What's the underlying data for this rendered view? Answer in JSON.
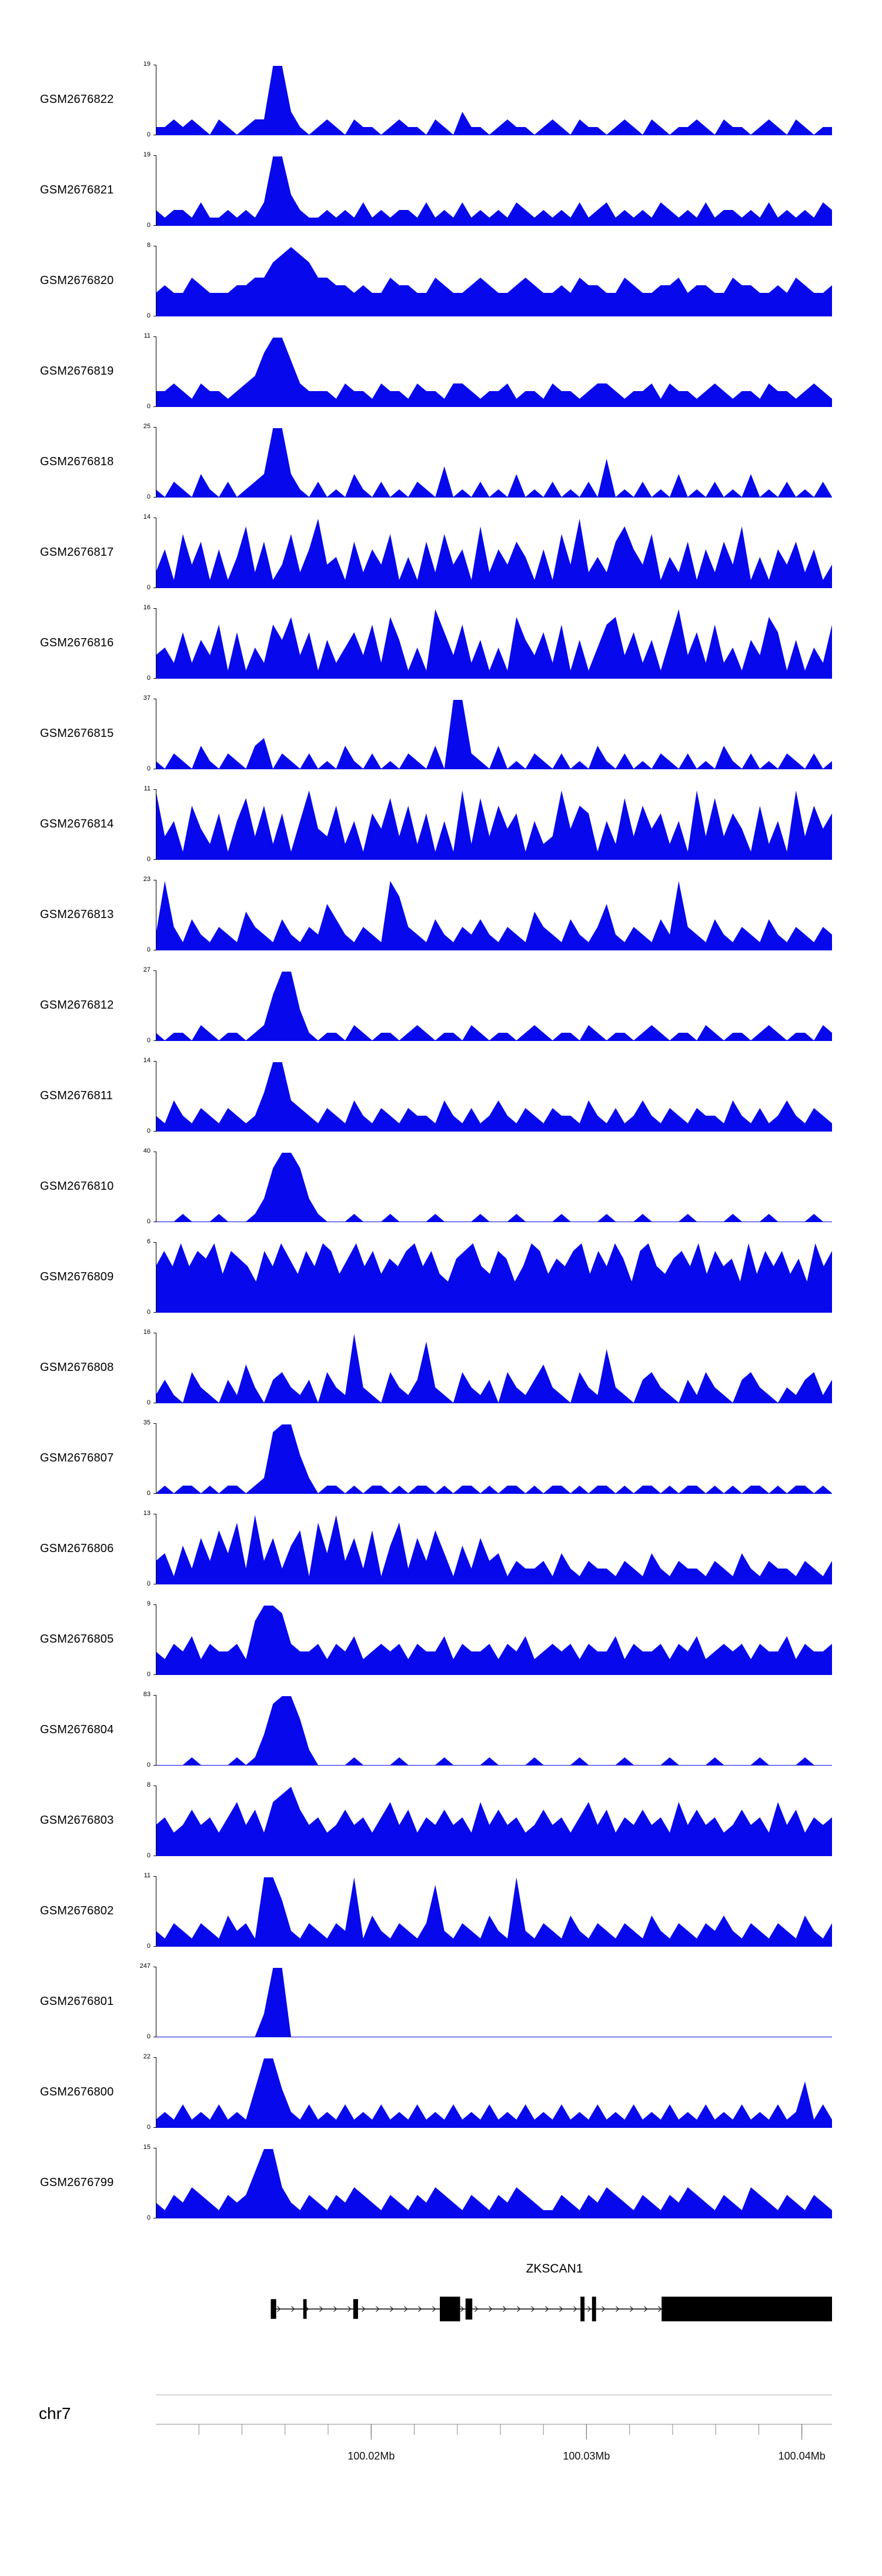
{
  "chart_data": {
    "type": "area",
    "description": "Genome browser coverage signal tracks (blue filled area plots), one per GEO sample, over a shared genomic x-axis with a gene model and chromosome ruler below.",
    "signal_color": "#0708ec",
    "profile_encoding": "each digit 0-9 is the signal height in ninths of y_max, sampled uniformly across the displayed region",
    "x_axis": {
      "chromosome": "chr7",
      "unit": "Mb",
      "range_mb": [
        100.01,
        100.0414
      ]
    },
    "tracks": [
      {
        "name": "GSM2676822",
        "y_min": 0,
        "y_max": 19,
        "profile": "1121210210122993101210211012110210311012110121021101210210112102110121021011"
      },
      {
        "name": "GSM2676821",
        "y_min": 0,
        "y_max": 19,
        "profile": "2122131121213994211212131212213121312121321212131231212132121312212131212132"
      },
      {
        "name": "GSM2676820",
        "y_min": 0,
        "y_max": 8,
        "profile": "3433543334455789875544343354433543345433454334354433543344534433544334354334"
      },
      {
        "name": "GSM2676819",
        "y_min": 0,
        "y_max": 11,
        "profile": "2232132212347996322213221322132213321223122132212332122313221232122132212321"
      },
      {
        "name": "GSM2676818",
        "y_min": 0,
        "y_max": 25,
        "profile": "1021031020123993102010310201021040102010301020102050102010301020103010201020"
      },
      {
        "name": "GSM2676817",
        "y_min": 0,
        "y_max": 14,
        "profile": "2517361514826137259341625371416273518253641517392426853714261526381415362513"
      },
      {
        "name": "GSM2676816",
        "y_min": 0,
        "y_max": 16,
        "profile": "3426253716142758361524637285141963725141853627151478362515936272415386151427"
      },
      {
        "name": "GSM2676815",
        "y_min": 0,
        "y_max": 37,
        "profile": "1021031021034021020103102010210309921030102102010310201021020103102010210201"
      },
      {
        "name": "GSM2676814",
        "y_min": 0,
        "y_max": 11,
        "profile": "9351742615837261594372516483726151928374615239476152837462519383641725193746"
      },
      {
        "name": "GSM2676813",
        "y_min": 0,
        "y_max": 23,
        "profile": "2931421321532142132642132197321421324213215321421362132142932142132142132132"
      },
      {
        "name": "GSM2676812",
        "y_min": 0,
        "y_max": 27,
        "profile": "1011021011012699410110210110121011021011012101102101101210110210110121011021"
      },
      {
        "name": "GSM2676811",
        "y_min": 0,
        "y_max": 14,
        "profile": "2142132132125994321321421321322142131242132132214213124213213221421312421321"
      },
      {
        "name": "GSM2676810",
        "y_min": 0,
        "y_max": 40,
        "profile": "0001000100013799731000100010000100001000100001000010001000010000100010000100"
      },
      {
        "name": "GSM2676809",
        "y_min": 0,
        "y_max": 6,
        "profile": "6869687958764869758698579685768968547896587469857689586974896578695867495868574968"
      },
      {
        "name": "GSM2676808",
        "y_min": 0,
        "y_max": 16,
        "profile": "1310421031520342130421921042138210421304213521042172103421031421034210213413"
      },
      {
        "name": "GSM2676807",
        "y_min": 0,
        "y_max": 35,
        "profile": "0101101011012899520110101101011010110101101011010110101101011010101101011010"
      },
      {
        "name": "GSM2676806",
        "y_min": 0,
        "y_max": 13,
        "profile": "3415263748293625718493627158263741526341322314213221321421322132142132213213"
      },
      {
        "name": "GSM2676805",
        "y_min": 0,
        "y_max": 9,
        "profile": "3243524334279984334243523434243352433424352343424335243342435234342433524334"
      },
      {
        "name": "GSM2676804",
        "y_min": 0,
        "y_max": 83,
        "profile": "0000100001014899620000100001000010000100001000010000100001000010000100001000"
      },
      {
        "name": "GSM2676803",
        "y_min": 0,
        "y_max": 8,
        "profile": "4534645357463789645346453574635464537464534645357463546453746453464537463545"
      },
      {
        "name": "GSM2676802",
        "y_min": 0,
        "y_max": 11,
        "profile": "2132132142319962132132914213213821321421921321421321321421321324213213214213"
      },
      {
        "name": "GSM2676801",
        "y_min": 0,
        "y_max": 247,
        "profile": "0000000000003990000000000000000000000000000000000000000000000000000000000000"
      },
      {
        "name": "GSM2676800",
        "y_min": 0,
        "y_max": 22,
        "profile": "1213121312159952131213121312131213121312131213121312131213121312131213126131"
      },
      {
        "name": "GSM2676799",
        "y_min": 0,
        "y_max": 15,
        "profile": "2132432132369942132132432132132432132132432113213243213213243213214321321321"
      }
    ],
    "gene_annotation": {
      "label": "ZKSCAN1",
      "strand": "+",
      "span": [
        0.17,
        1.0
      ],
      "exons": [
        [
          0.17,
          0.008,
          0.8
        ],
        [
          0.218,
          0.005,
          0.8
        ],
        [
          0.292,
          0.007,
          0.8
        ],
        [
          0.42,
          0.03,
          1.0
        ],
        [
          0.458,
          0.01,
          0.85
        ],
        [
          0.628,
          0.006,
          1.0
        ],
        [
          0.645,
          0.006,
          1.0
        ],
        [
          0.748,
          0.252,
          1.0
        ]
      ]
    },
    "ruler": {
      "chromosome_label": "chr7",
      "major_ticks": [
        {
          "pos": 0.3185,
          "label": "100.02Mb"
        },
        {
          "pos": 0.6369,
          "label": "100.03Mb"
        },
        {
          "pos": 0.9554,
          "label": "100.04Mb"
        }
      ],
      "minor_ticks": [
        0.0637,
        0.1274,
        0.1911,
        0.2548,
        0.3185,
        0.3822,
        0.4459,
        0.5096,
        0.5732,
        0.6369,
        0.7006,
        0.7643,
        0.828,
        0.8917,
        0.9554
      ]
    }
  }
}
